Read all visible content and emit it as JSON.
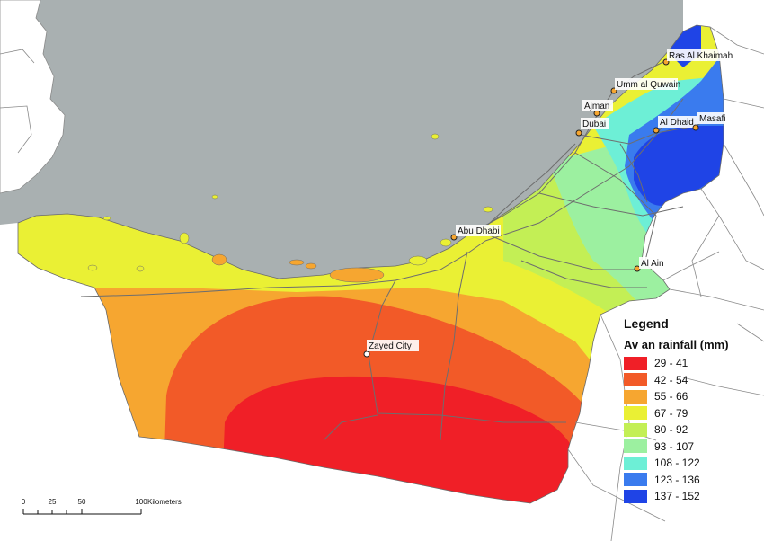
{
  "legend": {
    "title": "Legend",
    "subtitle": "Av an rainfall (mm)",
    "classes": [
      {
        "label": "29 - 41",
        "color": "#f01f27"
      },
      {
        "label": "42 - 54",
        "color": "#f25a28"
      },
      {
        "label": "55 - 66",
        "color": "#f6a630"
      },
      {
        "label": "67 - 79",
        "color": "#eaf034"
      },
      {
        "label": "80 - 92",
        "color": "#c3ef55"
      },
      {
        "label": "93 - 107",
        "color": "#9cf0a0"
      },
      {
        "label": "108 - 122",
        "color": "#6defd6"
      },
      {
        "label": "123 - 136",
        "color": "#3a7bee"
      },
      {
        "label": "137 - 152",
        "color": "#1f44e6"
      }
    ]
  },
  "cities": {
    "ras_al_khaimah": "Ras Al Khaimah",
    "umm_al_quwain": "Umm al Quwain",
    "ajman": "Ajman",
    "dubai": "Dubai",
    "al_dhaid": "Al Dhaid",
    "masafi": "Masafi",
    "abu_dhabi": "Abu Dhabi",
    "al_ain": "Al Ain",
    "zayed_city": "Zayed City"
  },
  "scale_bar": {
    "ticks": [
      "0",
      "25",
      "50",
      "100"
    ],
    "unit": "Kilometers"
  },
  "colors": {
    "sea": "#a9b0b1",
    "land_outside": "#ffffff",
    "roads": "#7b7b7b",
    "boundaries": "#8a8a8a"
  }
}
